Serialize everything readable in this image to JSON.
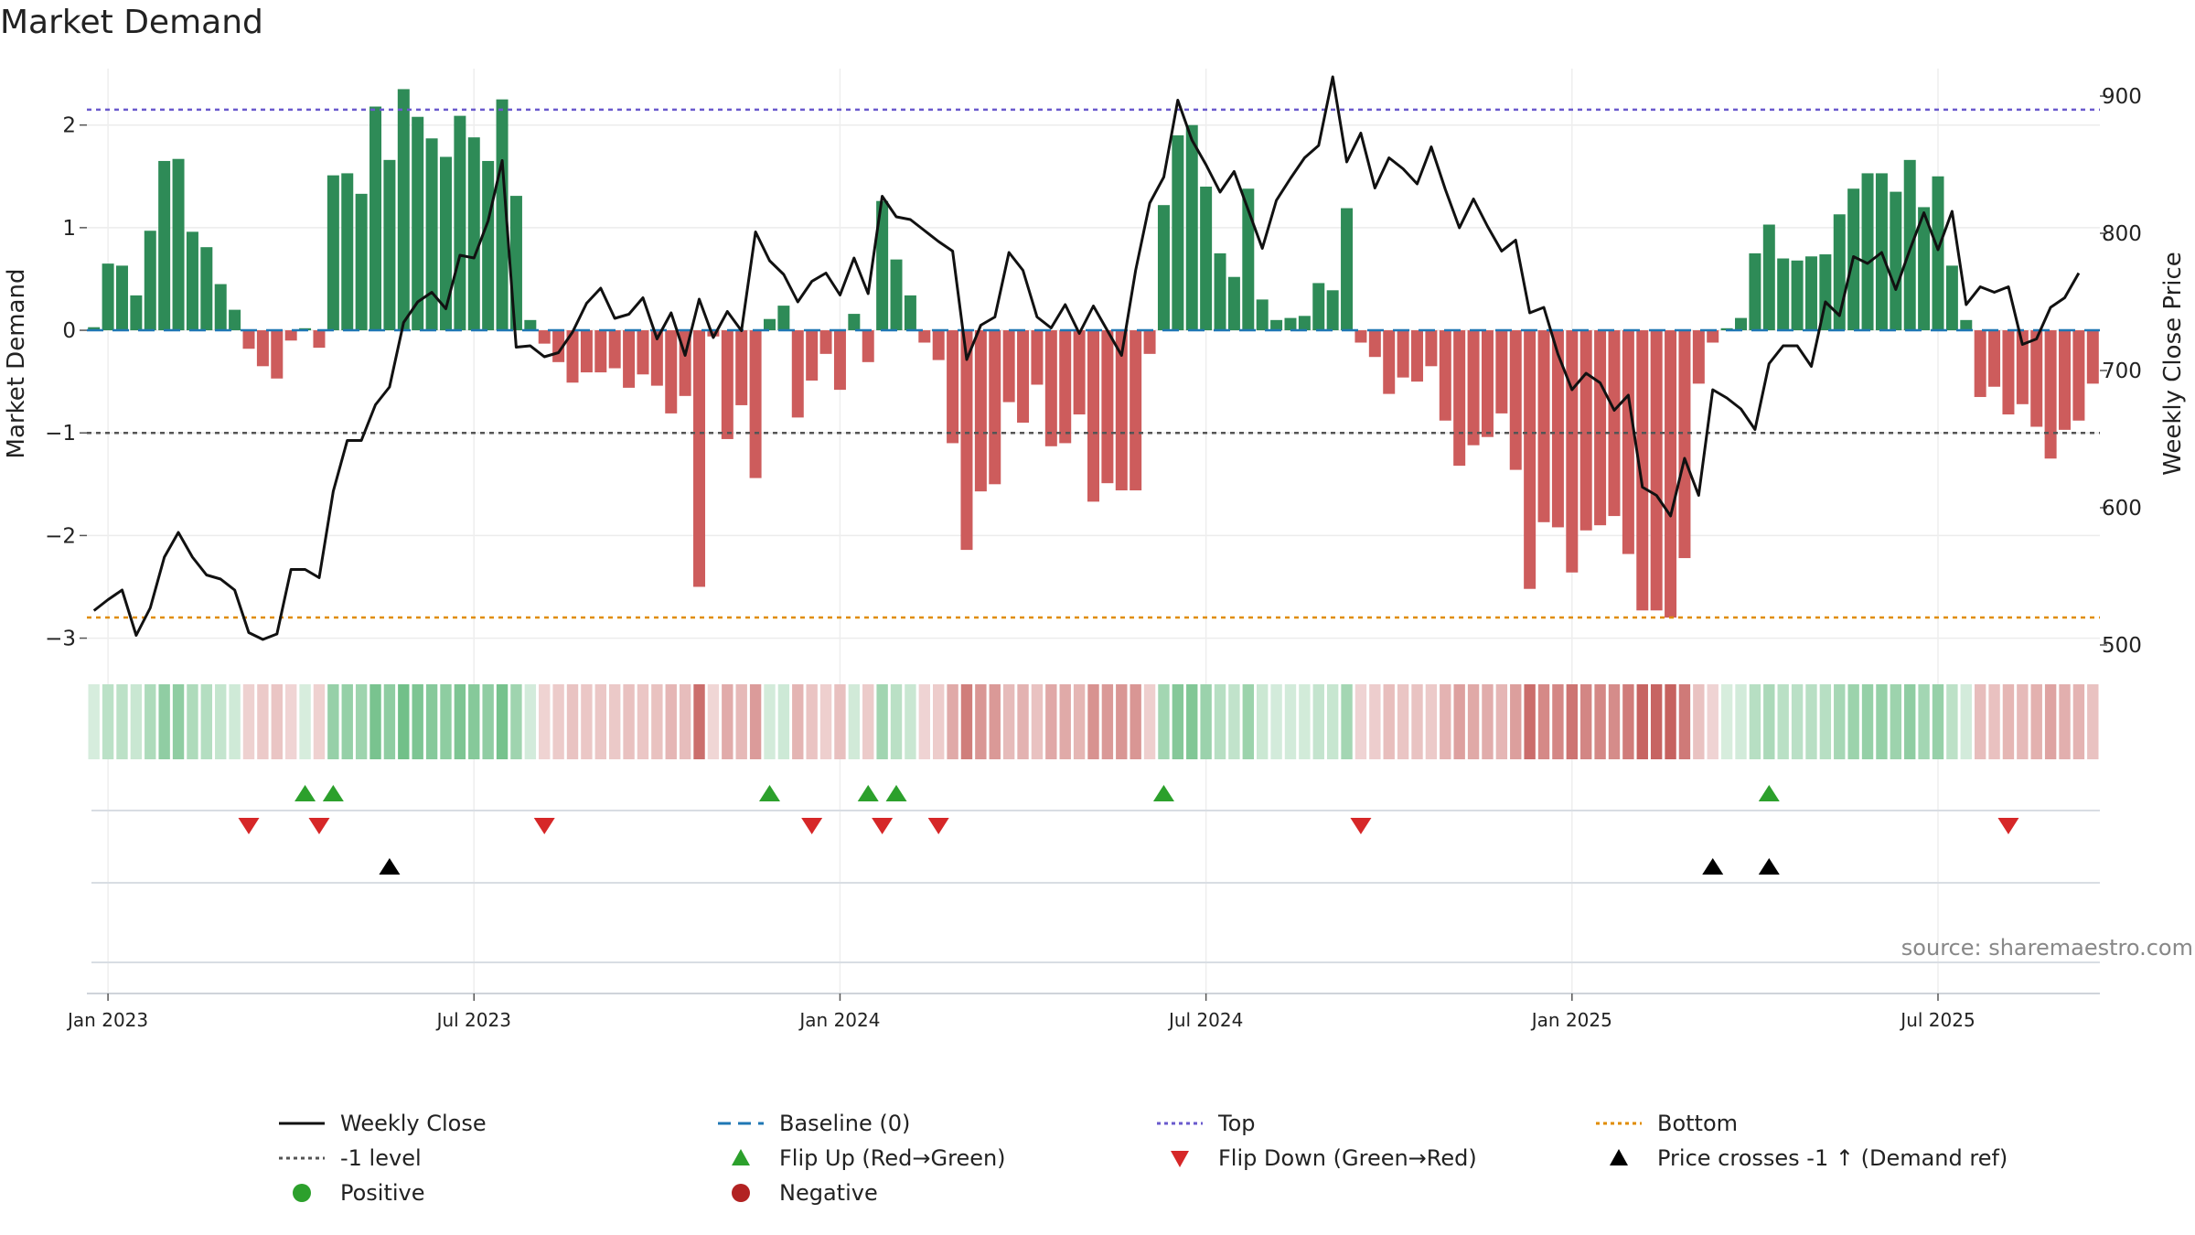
{
  "title": "Market Demand",
  "source": "source: sharemaestro.com",
  "chart_data": {
    "type": "bar",
    "title": "Market Demand",
    "ylabel_left": "Market Demand",
    "ylabel_right": "Weekly Close Price",
    "ylim_left": [
      -3.2,
      2.55
    ],
    "ylim_right": [
      490,
      920
    ],
    "yticks_left": [
      2,
      1,
      0,
      -1,
      -2,
      -3
    ],
    "ytick_labels_left": [
      "2",
      "1",
      "0",
      "−1",
      "−2",
      "−3"
    ],
    "yticks_right": [
      900,
      800,
      700,
      600,
      500
    ],
    "ytick_labels_right": [
      "900",
      "800",
      "700",
      "600",
      "500"
    ],
    "xtick_weeks": [
      1,
      27,
      53,
      79,
      105,
      131
    ],
    "xtick_labels": [
      "Jan 2023",
      "Jul 2023",
      "Jan 2024",
      "Jul 2024",
      "Jan 2025",
      "Jul 2025"
    ],
    "reference_lines": {
      "top": 2.15,
      "minus_one": -1,
      "bottom": 520,
      "baseline": 0
    },
    "demand": [
      0.03,
      0.65,
      0.63,
      0.34,
      0.97,
      1.65,
      1.67,
      0.96,
      0.81,
      0.45,
      0.2,
      -0.18,
      -0.35,
      -0.47,
      -0.1,
      0.02,
      -0.17,
      1.51,
      1.53,
      1.33,
      2.18,
      1.66,
      2.35,
      2.08,
      1.87,
      1.69,
      2.09,
      1.88,
      1.65,
      2.25,
      1.31,
      0.1,
      -0.13,
      -0.31,
      -0.51,
      -0.41,
      -0.41,
      -0.37,
      -0.56,
      -0.43,
      -0.54,
      -0.81,
      -0.64,
      -2.5,
      -0.06,
      -1.06,
      -0.73,
      -1.44,
      0.11,
      0.24,
      -0.85,
      -0.49,
      -0.23,
      -0.58,
      0.16,
      -0.31,
      1.26,
      0.69,
      0.34,
      -0.12,
      -0.29,
      -1.1,
      -2.14,
      -1.57,
      -1.5,
      -0.7,
      -0.9,
      -0.53,
      -1.13,
      -1.1,
      -0.82,
      -1.67,
      -1.49,
      -1.56,
      -1.56,
      -0.23,
      1.22,
      1.9,
      2.0,
      1.4,
      0.75,
      0.52,
      1.38,
      0.3,
      0.1,
      0.12,
      0.14,
      0.46,
      0.39,
      1.19,
      -0.12,
      -0.26,
      -0.62,
      -0.46,
      -0.5,
      -0.35,
      -0.88,
      -1.32,
      -1.12,
      -1.04,
      -0.81,
      -1.36,
      -2.52,
      -1.87,
      -1.92,
      -2.36,
      -1.95,
      -1.9,
      -1.81,
      -2.18,
      -2.73,
      -2.73,
      -2.8,
      -2.22,
      -0.52,
      -0.12,
      0.02,
      0.12,
      0.75,
      1.03,
      0.7,
      0.68,
      0.72,
      0.74,
      1.13,
      1.38,
      1.53,
      1.53,
      1.35,
      1.66,
      1.2,
      1.5,
      0.63,
      0.1,
      -0.65,
      -0.55,
      -0.82,
      -0.72,
      -0.94,
      -1.25,
      -0.97,
      -0.88,
      -0.52
    ],
    "close": [
      525,
      533,
      540,
      507,
      527,
      564,
      582,
      564,
      551,
      548,
      540,
      509,
      504,
      508,
      555,
      555,
      549,
      612,
      649,
      649,
      675,
      688,
      735,
      750,
      757,
      745,
      784,
      782,
      809,
      853,
      717,
      718,
      710,
      713,
      728,
      749,
      760,
      738,
      741,
      753,
      723,
      742,
      711,
      752,
      724,
      743,
      729,
      801,
      780,
      770,
      750,
      765,
      771,
      755,
      782,
      756,
      827,
      812,
      810,
      802,
      794,
      787,
      708,
      733,
      739,
      786,
      773,
      739,
      731,
      748,
      727,
      747,
      729,
      711,
      773,
      822,
      841,
      897,
      868,
      850,
      830,
      845,
      817,
      789,
      824,
      840,
      855,
      864,
      914,
      852,
      873,
      833,
      855,
      847,
      836,
      863,
      832,
      804,
      825,
      805,
      787,
      795,
      742,
      746,
      712,
      686,
      698,
      691,
      671,
      682,
      615,
      609,
      594,
      636,
      609,
      686,
      680,
      672,
      657,
      705,
      718,
      718,
      703,
      750,
      740,
      783,
      778,
      786,
      759,
      788,
      815,
      788,
      816,
      748,
      761,
      757,
      761,
      719,
      723,
      746,
      753,
      771
    ],
    "flip_up_weeks": [
      15,
      17,
      48,
      55,
      57,
      76,
      119
    ],
    "flip_down_weeks": [
      11,
      16,
      32,
      51,
      56,
      60,
      90,
      136
    ],
    "price_cross_weeks": [
      21,
      115,
      119
    ],
    "heat_strip": "intensity of each week's demand bar (green = positive, red = negative)"
  },
  "legend": [
    {
      "key": "weekly_close",
      "label": "Weekly Close"
    },
    {
      "key": "baseline",
      "label": "Baseline (0)"
    },
    {
      "key": "top",
      "label": "Top"
    },
    {
      "key": "bottom",
      "label": "Bottom"
    },
    {
      "key": "minus_one",
      "label": "-1 level"
    },
    {
      "key": "flip_up",
      "label": "Flip Up (Red→Green)"
    },
    {
      "key": "flip_down",
      "label": "Flip Down (Green→Red)"
    },
    {
      "key": "price_cross",
      "label": "Price crosses -1 ↑ (Demand ref)"
    },
    {
      "key": "positive",
      "label": "Positive"
    },
    {
      "key": "negative",
      "label": "Negative"
    }
  ],
  "colors": {
    "positive": "#2e8b57",
    "negative": "#cd5c5c",
    "close": "#111111",
    "baseline": "#1f77b4",
    "top": "#6a5acd",
    "minus_one": "#555555",
    "bottom": "#e08c00",
    "flip_up": "#2ca02c",
    "flip_down": "#d62728",
    "price_cross": "#000000",
    "legend_positive": "#2ca02c",
    "legend_negative": "#b22222"
  }
}
